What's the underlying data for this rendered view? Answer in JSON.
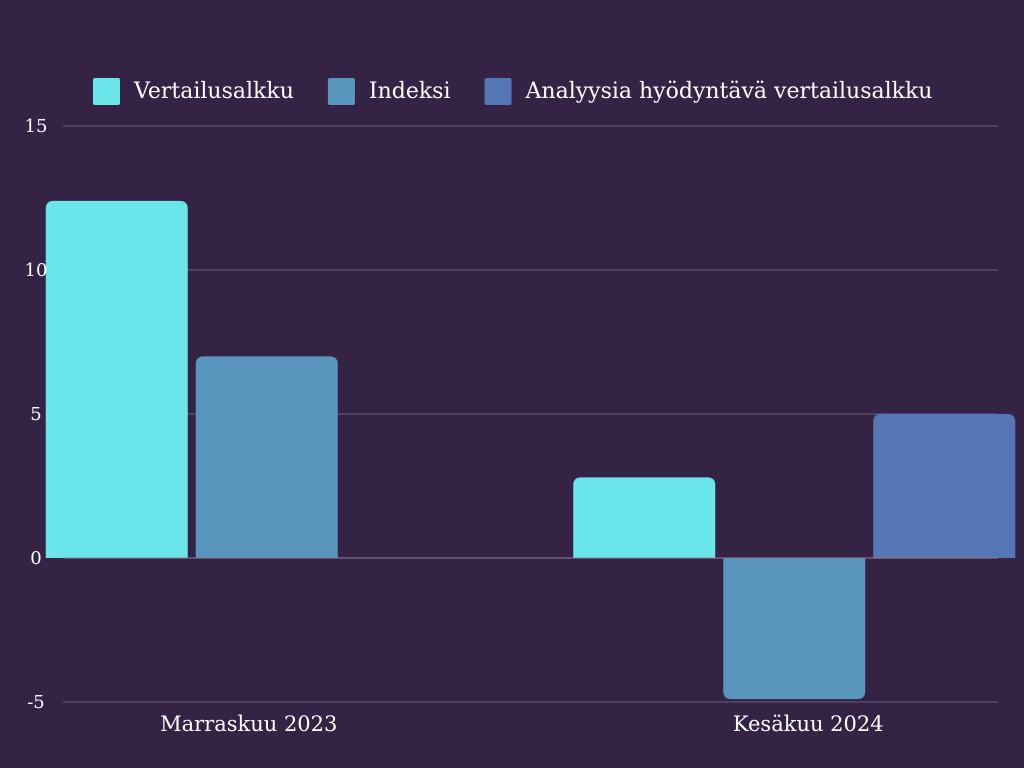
{
  "chart_data": {
    "type": "bar",
    "categories": [
      "Marraskuu 2023",
      "Kesäkuu 2024"
    ],
    "series": [
      {
        "name": "Vertailusalkku",
        "color": "#6ae5ea",
        "values": [
          12.4,
          2.8
        ]
      },
      {
        "name": "Indeksi",
        "color": "#5996bd",
        "values": [
          7.0,
          -4.9
        ]
      },
      {
        "name": "Analyysia hyödyntävä vertailusalkku",
        "color": "#5576b4",
        "values": [
          null,
          5.0
        ]
      }
    ],
    "ylim": [
      -5,
      15
    ],
    "yticks": [
      "-5",
      "0",
      "5",
      "10",
      "15"
    ],
    "ytick_values": [
      -5,
      0,
      5,
      10,
      15
    ],
    "grid": true,
    "legend": "top",
    "background": "#352346"
  }
}
